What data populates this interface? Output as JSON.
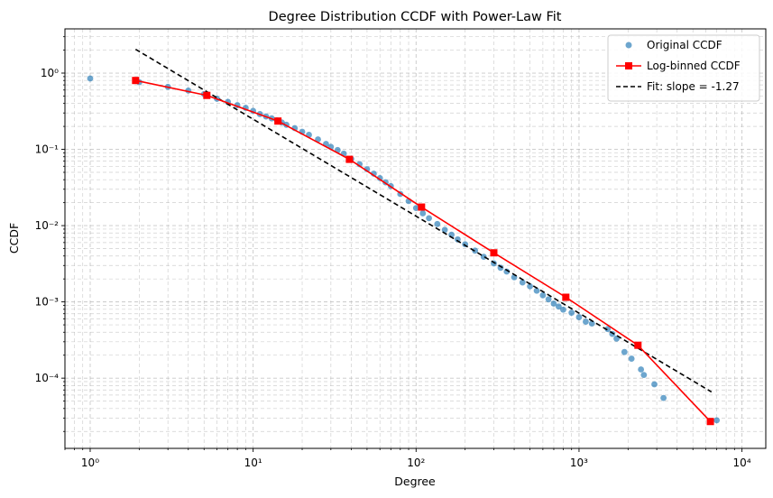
{
  "chart_data": {
    "type": "line",
    "title": "Degree Distribution CCDF with Power-Law Fit",
    "xlabel": "Degree",
    "ylabel": "CCDF",
    "xscale": "log",
    "yscale": "log",
    "xlim": [
      0.7,
      14000
    ],
    "ylim": [
      1.2e-05,
      3.8
    ],
    "grid": "both major and minor, dashed light gray",
    "legend_position": "top-right",
    "x_ticks": [
      {
        "value": 1,
        "label": "10⁰"
      },
      {
        "value": 10,
        "label": "10¹"
      },
      {
        "value": 100,
        "label": "10²"
      },
      {
        "value": 1000,
        "label": "10³"
      },
      {
        "value": 10000,
        "label": "10⁴"
      }
    ],
    "y_ticks": [
      {
        "value": 0.0001,
        "label": "10⁻⁴"
      },
      {
        "value": 0.001,
        "label": "10⁻³"
      },
      {
        "value": 0.01,
        "label": "10⁻²"
      },
      {
        "value": 0.1,
        "label": "10⁻¹"
      },
      {
        "value": 1,
        "label": "10⁰"
      }
    ],
    "series": [
      {
        "name": "Original CCDF",
        "style": "scatter",
        "color": "#1f77b4",
        "points": [
          [
            1,
            0.85
          ],
          [
            2,
            0.76
          ],
          [
            3,
            0.66
          ],
          [
            4,
            0.59
          ],
          [
            5,
            0.53
          ],
          [
            6,
            0.46
          ],
          [
            7,
            0.42
          ],
          [
            8,
            0.38
          ],
          [
            9,
            0.35
          ],
          [
            10,
            0.32
          ],
          [
            11,
            0.29
          ],
          [
            12,
            0.27
          ],
          [
            13,
            0.255
          ],
          [
            14,
            0.24
          ],
          [
            15,
            0.225
          ],
          [
            16,
            0.21
          ],
          [
            18,
            0.19
          ],
          [
            20,
            0.17
          ],
          [
            22,
            0.155
          ],
          [
            25,
            0.135
          ],
          [
            28,
            0.118
          ],
          [
            30,
            0.108
          ],
          [
            33,
            0.098
          ],
          [
            36,
            0.088
          ],
          [
            40,
            0.075
          ],
          [
            45,
            0.064
          ],
          [
            50,
            0.055
          ],
          [
            55,
            0.048
          ],
          [
            60,
            0.042
          ],
          [
            65,
            0.037
          ],
          [
            70,
            0.033
          ],
          [
            80,
            0.026
          ],
          [
            90,
            0.021
          ],
          [
            100,
            0.017
          ],
          [
            110,
            0.0145
          ],
          [
            120,
            0.0125
          ],
          [
            135,
            0.0105
          ],
          [
            150,
            0.0088
          ],
          [
            165,
            0.0076
          ],
          [
            180,
            0.0066
          ],
          [
            200,
            0.0057
          ],
          [
            230,
            0.0047
          ],
          [
            260,
            0.0039
          ],
          [
            300,
            0.0032
          ],
          [
            330,
            0.0028
          ],
          [
            360,
            0.0025
          ],
          [
            400,
            0.0021
          ],
          [
            450,
            0.0018
          ],
          [
            500,
            0.0016
          ],
          [
            550,
            0.0014
          ],
          [
            600,
            0.00122
          ],
          [
            650,
            0.00108
          ],
          [
            700,
            0.00095
          ],
          [
            750,
            0.00087
          ],
          [
            800,
            0.00079
          ],
          [
            900,
            0.00072
          ],
          [
            1000,
            0.00063
          ],
          [
            1100,
            0.00055
          ],
          [
            1200,
            0.00052
          ],
          [
            1500,
            0.00044
          ],
          [
            1600,
            0.00038
          ],
          [
            1700,
            0.00033
          ],
          [
            1900,
            0.00022
          ],
          [
            2100,
            0.00018
          ],
          [
            2400,
            0.00013
          ],
          [
            2500,
            0.00011
          ],
          [
            2900,
            8.3e-05
          ],
          [
            3300,
            5.5e-05
          ],
          [
            7000,
            2.8e-05
          ]
        ]
      },
      {
        "name": "Log-binned CCDF",
        "style": "line-square",
        "color": "#ff0000",
        "points": [
          [
            1.9,
            0.8
          ],
          [
            5.2,
            0.51
          ],
          [
            14.2,
            0.235
          ],
          [
            39,
            0.074
          ],
          [
            108,
            0.0175
          ],
          [
            300,
            0.0044
          ],
          [
            830,
            0.00115
          ],
          [
            2300,
            0.00027
          ],
          [
            6400,
            2.7e-05
          ]
        ]
      },
      {
        "name": "Fit: slope = -1.27",
        "style": "dashed-line",
        "color": "#000000",
        "slope": -1.27,
        "points": [
          [
            1.9,
            2.05
          ],
          [
            6500,
            6.6e-05
          ]
        ]
      }
    ]
  }
}
